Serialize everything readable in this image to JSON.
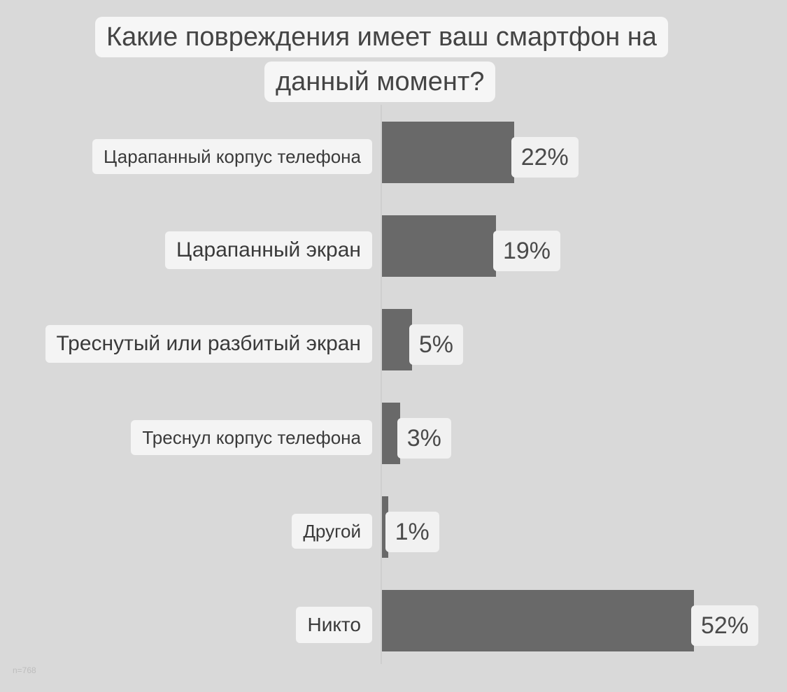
{
  "chart_data": {
    "type": "bar",
    "orientation": "horizontal",
    "title": "Какие повреждения имеет ваш смартфон на данный момент?",
    "title_lines": [
      "Какие повреждения имеет ваш смартфон на",
      "данный момент?"
    ],
    "categories": [
      "Царапанный корпус телефона",
      "Царапанный экран",
      "Треснутый или разбитый экран",
      "Треснул корпус телефона",
      "Другой",
      "Никто"
    ],
    "values": [
      22,
      19,
      5,
      3,
      1,
      52
    ],
    "value_labels": [
      "22%",
      "19%",
      "5%",
      "3%",
      "1%",
      "52%"
    ],
    "xlim": [
      0,
      52
    ],
    "grid": false,
    "legend": "none",
    "colors": {
      "bar": "#696969",
      "background": "#d9d9d9",
      "label_box": "#f4f4f4"
    }
  },
  "footnote": "n=768"
}
